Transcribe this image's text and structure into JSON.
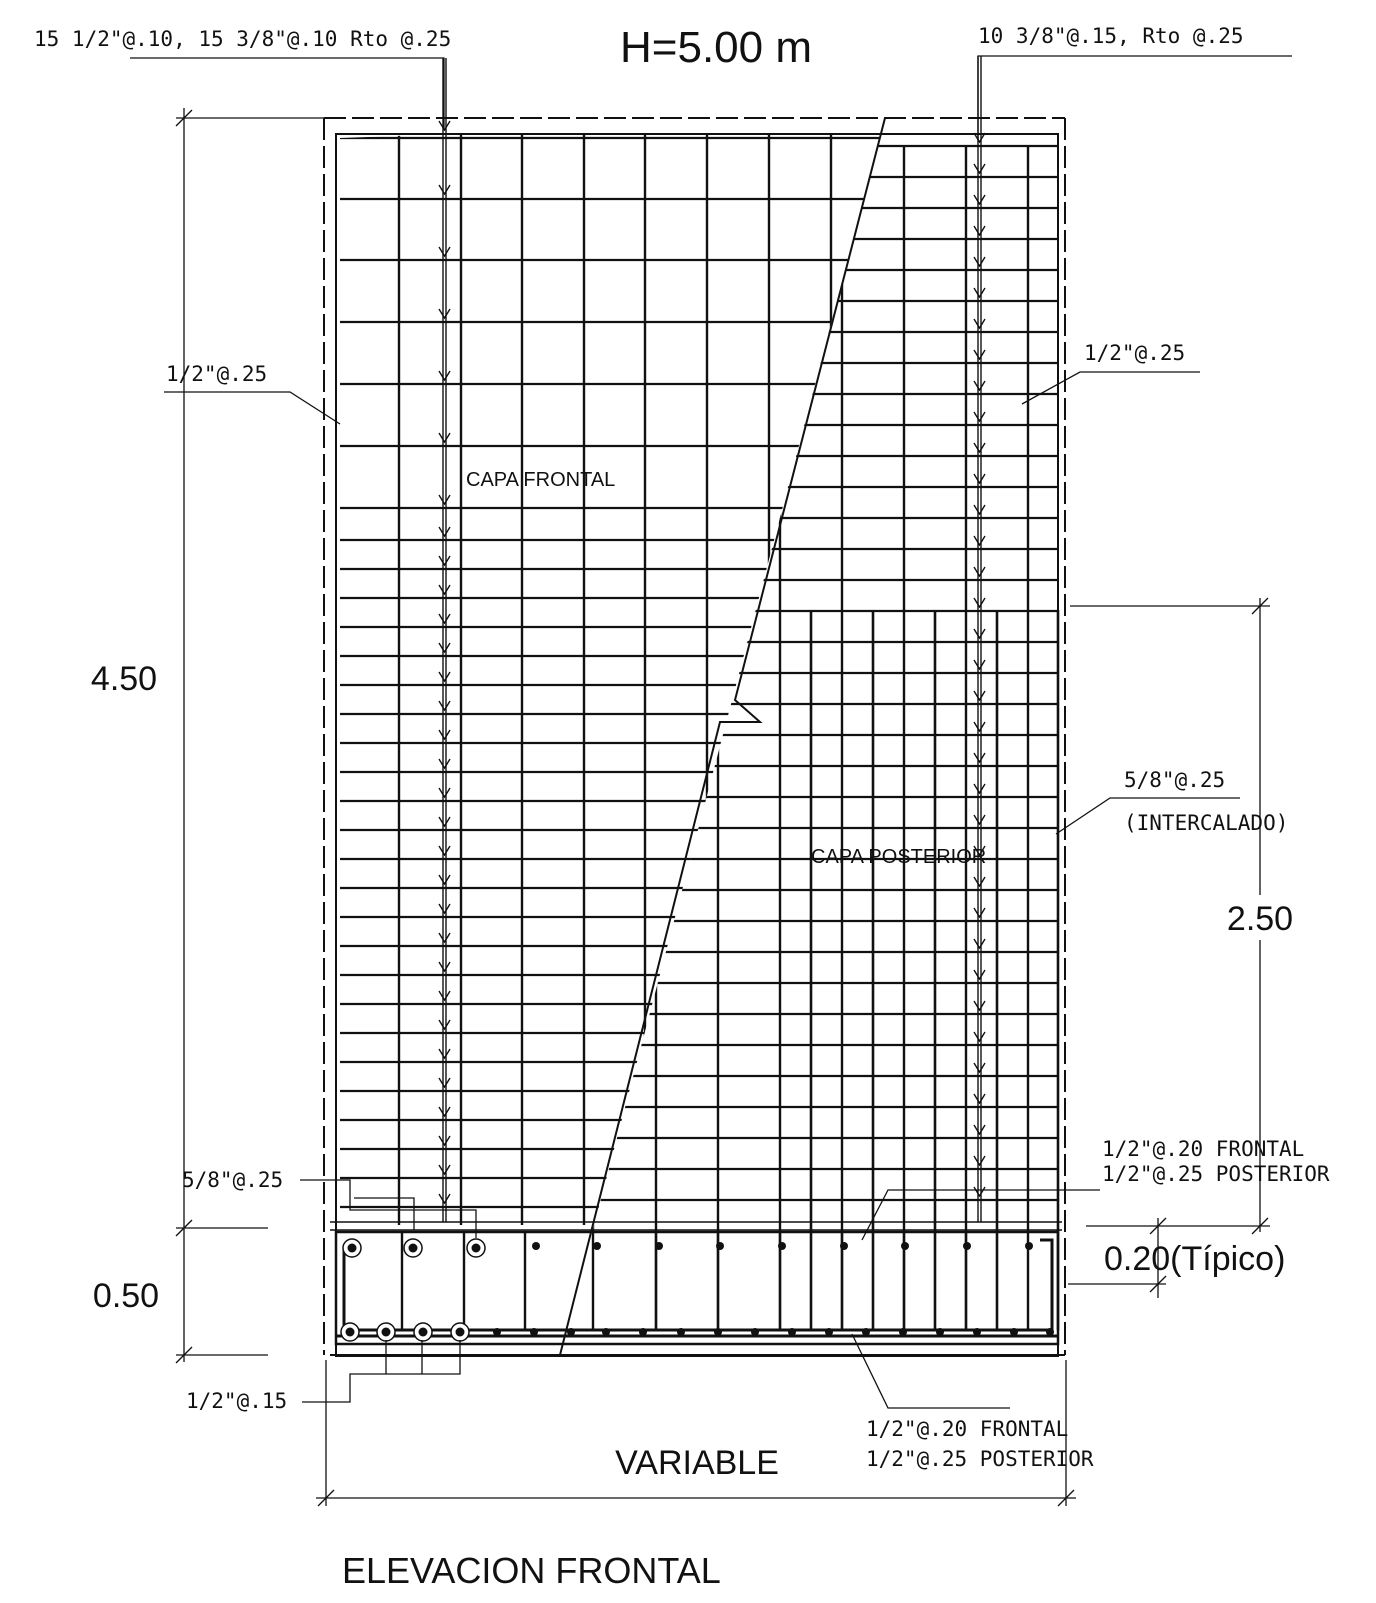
{
  "drawing": {
    "title": "ELEVACION FRONTAL",
    "header": "H=5.00 m",
    "colors": {
      "ink": "#111111",
      "paper": "#ffffff"
    }
  },
  "annotations": {
    "top_left": "15 1/2\"@.10, 15 3/8\"@.10 Rto @.25",
    "top_right": "10 3/8\"@.15, Rto @.25",
    "left_mid": "1/2\"@.25",
    "right_mid": "1/2\"@.25",
    "right_lower_a": "5/8\"@.25",
    "right_lower_b": "(INTERCALADO)",
    "layer_front": "CAPA  FRONTAL",
    "layer_back": "CAPA  POSTERIOR",
    "base_right_a": "1/2\"@.20  FRONTAL",
    "base_right_b": "1/2\"@.25  POSTERIOR",
    "base_left": "5/8\"@.25",
    "bottom_left": "1/2\"@.15",
    "bottom_right_a": "1/2\"@.20  FRONTAL",
    "bottom_right_b": "1/2\"@.25  POSTERIOR"
  },
  "dimensions": {
    "wall_height": "4.50",
    "footing_height": "0.50",
    "lower_zone": "2.50",
    "typical": "0.20(Típico)",
    "width": "VARIABLE"
  }
}
